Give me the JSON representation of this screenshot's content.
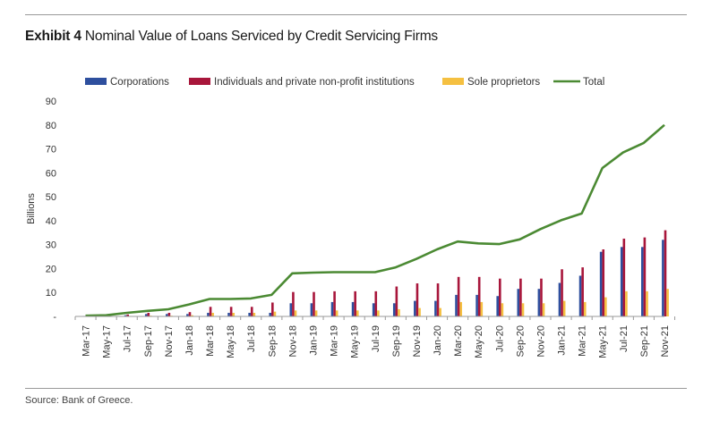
{
  "header": {
    "exhibit_label": "Exhibit 4",
    "title": "Nominal Value of Loans Serviced by Credit Servicing Firms"
  },
  "footer": {
    "source": "Source: Bank of Greece."
  },
  "colors": {
    "corporations": "#2e4f9e",
    "individuals": "#a8163b",
    "sole": "#f5c041",
    "total": "#4b8a33",
    "axis": "#999999"
  },
  "chart_data": {
    "type": "bar",
    "title": "Nominal Value of Loans Serviced by Credit Servicing Firms",
    "xlabel": "",
    "ylabel": "Billions",
    "ylim": [
      0,
      90
    ],
    "yticks": [
      "-",
      "10",
      "20",
      "30",
      "40",
      "50",
      "60",
      "70",
      "80",
      "90"
    ],
    "grid": false,
    "legend_position": "top",
    "categories": [
      "Mar-17",
      "May-17",
      "Jul-17",
      "Sep-17",
      "Nov-17",
      "Jan-18",
      "Mar-18",
      "May-18",
      "Jul-18",
      "Sep-18",
      "Nov-18",
      "Jan-19",
      "Mar-19",
      "May-19",
      "Jul-19",
      "Sep-19",
      "Nov-19",
      "Jan-20",
      "Mar-20",
      "May-20",
      "Jul-20",
      "Sep-20",
      "Nov-20",
      "Jan-21",
      "Mar-21",
      "May-21",
      "Jul-21",
      "Sep-21",
      "Nov-21"
    ],
    "series": [
      {
        "name": "Corporations",
        "type": "bar",
        "values": [
          0.2,
          0.2,
          0.5,
          1.0,
          1.0,
          1.0,
          1.5,
          1.5,
          1.5,
          1.5,
          5.5,
          5.5,
          6.0,
          6.0,
          5.5,
          5.5,
          6.5,
          6.5,
          9.0,
          9.0,
          8.5,
          11.5,
          11.5,
          14.0,
          17.0,
          27.0,
          29.0,
          29.0,
          32.0
        ]
      },
      {
        "name": "Individuals and private non-profit institutions",
        "type": "bar",
        "values": [
          0.2,
          0.3,
          0.8,
          1.5,
          1.5,
          1.8,
          4.0,
          4.0,
          4.0,
          5.8,
          10.2,
          10.2,
          10.5,
          10.5,
          10.5,
          12.5,
          13.8,
          13.8,
          16.5,
          16.5,
          15.8,
          15.8,
          15.8,
          19.7,
          20.5,
          28.0,
          32.5,
          33.0,
          36.0
        ]
      },
      {
        "name": "Sole proprietors",
        "type": "bar",
        "values": [
          0.0,
          0.0,
          0.2,
          0.3,
          0.3,
          0.5,
          1.5,
          1.5,
          1.5,
          2.0,
          2.5,
          2.5,
          2.5,
          2.5,
          2.5,
          3.0,
          3.5,
          3.5,
          6.0,
          6.0,
          5.5,
          5.5,
          5.5,
          6.5,
          6.0,
          8.0,
          10.5,
          10.5,
          11.5
        ]
      },
      {
        "name": "Total",
        "type": "line",
        "values": [
          0.3,
          0.5,
          1.5,
          2.3,
          3.0,
          5.0,
          7.3,
          7.3,
          7.5,
          9.0,
          18.0,
          18.3,
          18.5,
          18.5,
          18.5,
          20.5,
          24.0,
          28.0,
          31.3,
          30.5,
          30.2,
          32.2,
          36.5,
          40.2,
          43.0,
          62.0,
          68.5,
          72.5,
          80.0
        ]
      }
    ]
  }
}
